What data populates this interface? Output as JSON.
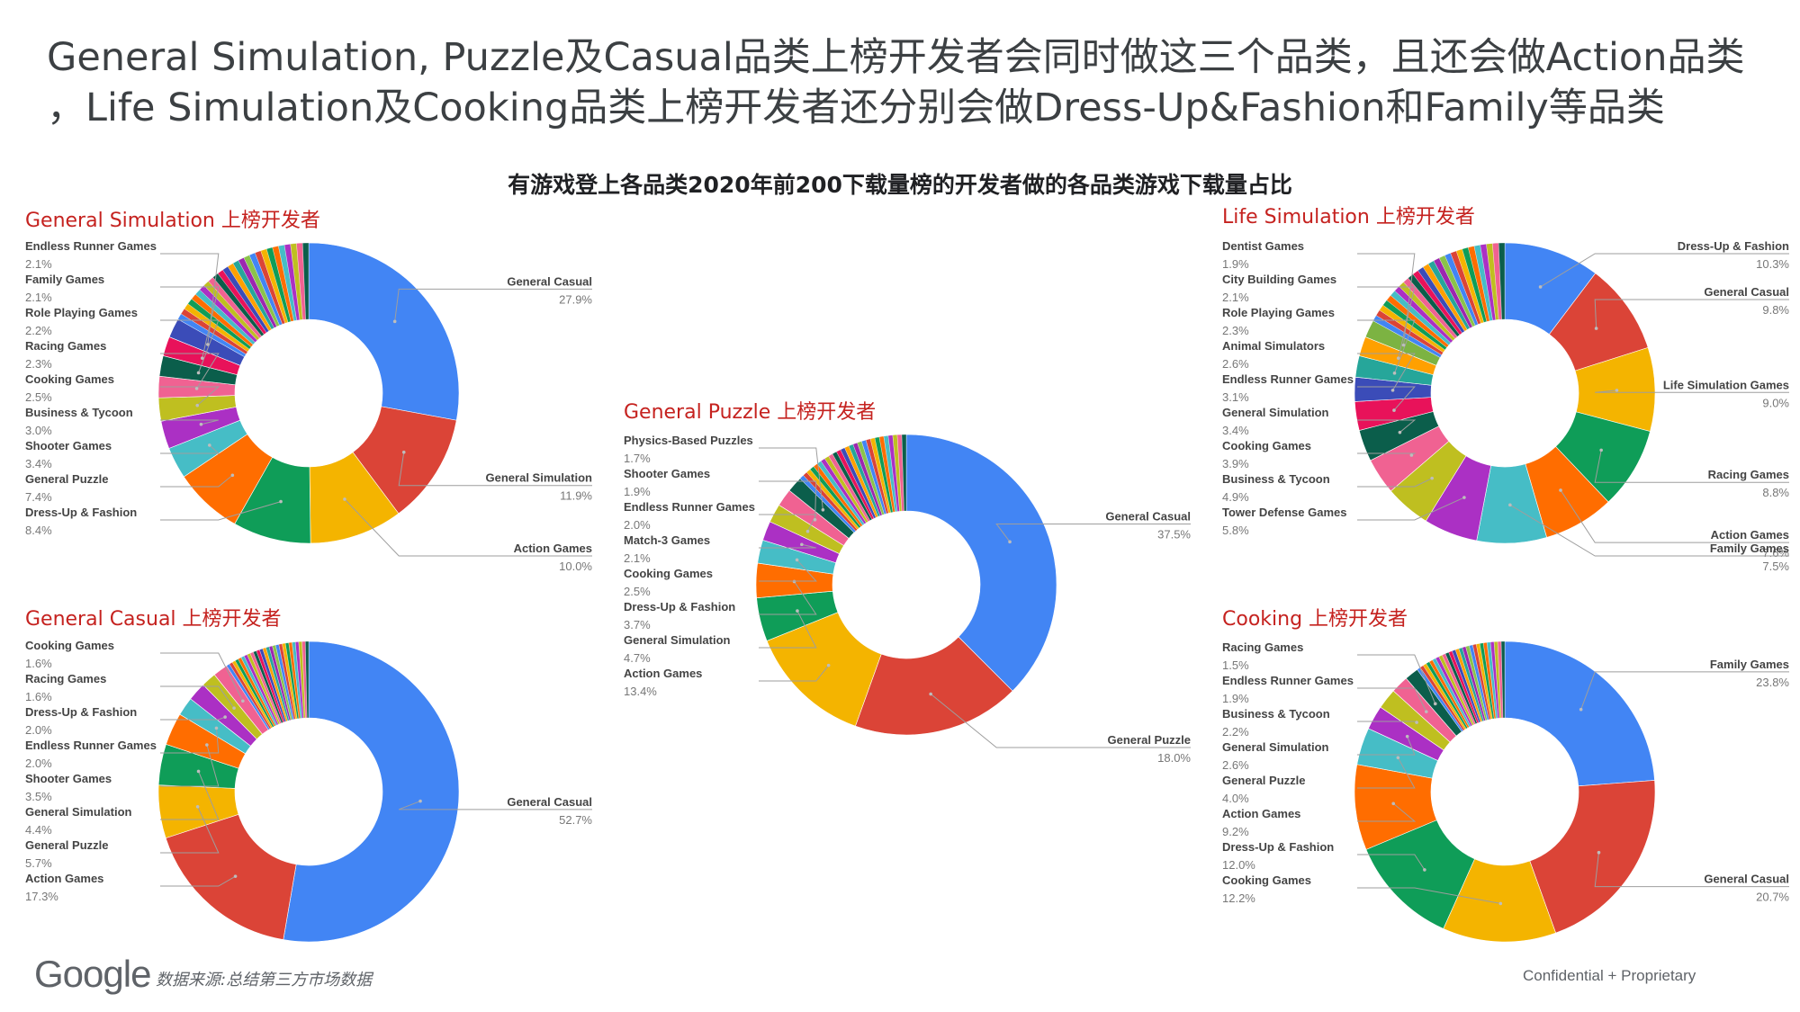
{
  "title_lines": [
    "General Simulation, Puzzle及Casual品类上榜开发者会同时做这三个品类，且还会做Action品类",
    "，Life Simulation及Cooking品类上榜开发者还分别会做Dress-Up&Fashion和Family等品类"
  ],
  "chart_heading": "有游戏登上各品类2020年前200下载量榜的开发者做的各品类游戏下载量占比",
  "footer": {
    "logo_text": "Google",
    "source": "数据来源:总结第三方市场数据",
    "confidential": "Confidential + Proprietary"
  },
  "colors": {
    "palette": [
      "#4285f4",
      "#db4437",
      "#f4b400",
      "#0f9d58",
      "#ff6d00",
      "#46bdc6",
      "#ab30c4",
      "#bfbf20",
      "#f06292",
      "#0b5e4b",
      "#e8125a",
      "#3b4cb8",
      "#26a69a",
      "#ffa000",
      "#7cb342",
      "#795548"
    ],
    "title_red": "#c5221f"
  },
  "chart_data": [
    {
      "type": "pie",
      "title": "General Simulation 上榜开发者",
      "slices": [
        {
          "label": "General Casual",
          "value": 27.9
        },
        {
          "label": "General Simulation",
          "value": 11.9
        },
        {
          "label": "Action Games",
          "value": 10.0
        },
        {
          "label": "Dress-Up & Fashion",
          "value": 8.4
        },
        {
          "label": "General Puzzle",
          "value": 7.4
        },
        {
          "label": "Shooter Games",
          "value": 3.4
        },
        {
          "label": "Business & Tycoon",
          "value": 3.0
        },
        {
          "label": "Cooking Games",
          "value": 2.5
        },
        {
          "label": "Racing Games",
          "value": 2.3
        },
        {
          "label": "Role Playing Games",
          "value": 2.2
        },
        {
          "label": "Family Games",
          "value": 2.1
        },
        {
          "label": "Endless Runner Games",
          "value": 2.1
        }
      ],
      "other_total": 16.8
    },
    {
      "type": "pie",
      "title": "General Puzzle 上榜开发者",
      "slices": [
        {
          "label": "General Casual",
          "value": 37.5
        },
        {
          "label": "General Puzzle",
          "value": 18.0
        },
        {
          "label": "Action Games",
          "value": 13.4
        },
        {
          "label": "General Simulation",
          "value": 4.7
        },
        {
          "label": "Dress-Up & Fashion",
          "value": 3.7
        },
        {
          "label": "Cooking Games",
          "value": 2.5
        },
        {
          "label": "Match-3 Games",
          "value": 2.1
        },
        {
          "label": "Endless Runner Games",
          "value": 2.0
        },
        {
          "label": "Shooter Games",
          "value": 1.9
        },
        {
          "label": "Physics-Based Puzzles",
          "value": 1.7
        }
      ],
      "other_total": 12.5
    },
    {
      "type": "pie",
      "title": "Life Simulation 上榜开发者",
      "slices": [
        {
          "label": "Dress-Up & Fashion",
          "value": 10.3
        },
        {
          "label": "General Casual",
          "value": 9.8
        },
        {
          "label": "Life Simulation Games",
          "value": 9.0
        },
        {
          "label": "Racing Games",
          "value": 8.8
        },
        {
          "label": "Action Games",
          "value": 7.6
        },
        {
          "label": "Family Games",
          "value": 7.5
        },
        {
          "label": "Tower Defense Games",
          "value": 5.8
        },
        {
          "label": "Business & Tycoon",
          "value": 4.9
        },
        {
          "label": "Cooking Games",
          "value": 3.9
        },
        {
          "label": "General Simulation",
          "value": 3.4
        },
        {
          "label": "Endless Runner Games",
          "value": 3.1
        },
        {
          "label": "Animal Simulators",
          "value": 2.6
        },
        {
          "label": "Role Playing Games",
          "value": 2.3
        },
        {
          "label": "City Building Games",
          "value": 2.1
        },
        {
          "label": "Dentist Games",
          "value": 1.9
        }
      ],
      "other_total": 17.0
    },
    {
      "type": "pie",
      "title": "General Casual 上榜开发者",
      "slices": [
        {
          "label": "General Casual",
          "value": 52.7
        },
        {
          "label": "Action Games",
          "value": 17.3
        },
        {
          "label": "General Puzzle",
          "value": 5.7
        },
        {
          "label": "General Simulation",
          "value": 4.4
        },
        {
          "label": "Shooter Games",
          "value": 3.5
        },
        {
          "label": "Endless Runner Games",
          "value": 2.0
        },
        {
          "label": "Dress-Up & Fashion",
          "value": 2.0
        },
        {
          "label": "Racing Games",
          "value": 1.6
        },
        {
          "label": "Cooking Games",
          "value": 1.6
        }
      ],
      "other_total": 9.2
    },
    {
      "type": "pie",
      "title": "Cooking 上榜开发者",
      "slices": [
        {
          "label": "Family Games",
          "value": 23.8
        },
        {
          "label": "General Casual",
          "value": 20.7
        },
        {
          "label": "Cooking Games",
          "value": 12.2
        },
        {
          "label": "Dress-Up & Fashion",
          "value": 12.0
        },
        {
          "label": "Action Games",
          "value": 9.2
        },
        {
          "label": "General Puzzle",
          "value": 4.0
        },
        {
          "label": "General Simulation",
          "value": 2.6
        },
        {
          "label": "Business & Tycoon",
          "value": 2.2
        },
        {
          "label": "Endless Runner Games",
          "value": 1.9
        },
        {
          "label": "Racing Games",
          "value": 1.5
        }
      ],
      "other_total": 9.9
    }
  ]
}
